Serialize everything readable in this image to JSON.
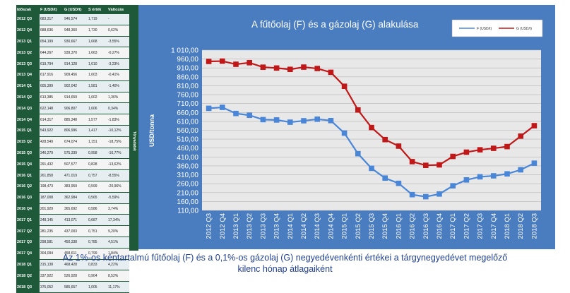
{
  "table": {
    "headers": [
      "Időszak",
      "F (USD/t)",
      "G (USD/t)",
      "S érték",
      "Változás"
    ],
    "side_label": "Tényadatok",
    "rows": [
      [
        "2012 Q3",
        "683,317",
        "946,574",
        "1,719",
        "-"
      ],
      [
        "2012 Q4",
        "688,636",
        "948,360",
        "1,730",
        "0,62%"
      ],
      [
        "2013 Q1",
        "654,199",
        "930,667",
        "1,668",
        "-3,55%"
      ],
      [
        "2013 Q2",
        "644,267",
        "939,370",
        "1,663",
        "-0,27%"
      ],
      [
        "2013 Q3",
        "619,794",
        "914,128",
        "1,610",
        "-3,23%"
      ],
      [
        "2013 Q4",
        "617,916",
        "909,456",
        "1,603",
        "-0,41%"
      ],
      [
        "2014 Q1",
        "605,399",
        "902,042",
        "1,581",
        "-1,40%"
      ],
      [
        "2014 Q2",
        "613,385",
        "914,659",
        "1,602",
        "1,36%"
      ],
      [
        "2014 Q3",
        "622,148",
        "906,807",
        "1,606",
        "0,34%"
      ],
      [
        "2014 Q4",
        "614,317",
        "885,348",
        "1,577",
        "-1,83%"
      ],
      [
        "2015 Q1",
        "543,922",
        "806,996",
        "1,417",
        "-10,12%"
      ],
      [
        "2015 Q2",
        "428,549",
        "674,074",
        "1,151",
        "-18,75%"
      ],
      [
        "2015 Q3",
        "346,279",
        "575,339",
        "0,958",
        "-16,77%"
      ],
      [
        "2015 Q4",
        "291,432",
        "507,577",
        "0,828",
        "-13,62%"
      ],
      [
        "2016 Q1",
        "261,858",
        "471,019",
        "0,757",
        "-8,55%"
      ],
      [
        "2016 Q2",
        "198,473",
        "383,959",
        "0,599",
        "-20,96%"
      ],
      [
        "2016 Q3",
        "187,008",
        "362,984",
        "0,565",
        "-5,59%"
      ],
      [
        "2016 Q4",
        "201,929",
        "365,692",
        "0,586",
        "3,74%"
      ],
      [
        "2017 Q1",
        "248,145",
        "413,071",
        "0,687",
        "17,34%"
      ],
      [
        "2017 Q2",
        "281,235",
        "437,003",
        "0,751",
        "9,20%"
      ],
      [
        "2017 Q3",
        "298,581",
        "450,338",
        "0,785",
        "4,51%"
      ],
      [
        "2017 Q4",
        "304,094",
        "458,611",
        "0,799",
        "1,84%"
      ],
      [
        "2018 Q1",
        "315,138",
        "468,428",
        "0,833",
        "4,22%"
      ],
      [
        "2018 Q2",
        "337,922",
        "526,928",
        "0,904",
        "8,52%"
      ],
      [
        "2018 Q3",
        "375,052",
        "585,657",
        "1,005",
        "11,17%"
      ]
    ]
  },
  "caption": {
    "line1": "Az 1%-os kéntartalmú fűtőolaj (F) és a 0,1%-os gázolaj (G) negyedévenkénti értékei a tárgynegyedévet megelőző",
    "line2": "kilenc hónap átlagaiként"
  },
  "colors": {
    "frame_bg": "#4a7cc0",
    "plot_bg": "#e8e8e8",
    "series_f": "#4a86d8",
    "series_g": "#c01818",
    "caption": "#1f3f8f",
    "table_header": "#1e5a3a"
  },
  "chart_data": {
    "type": "line",
    "title": "A fűtőolaj (F) és a gázolaj (G) alakulása",
    "xlabel": "",
    "ylabel": "USD/tonna",
    "ylim": [
      110,
      1010
    ],
    "ytick_step": 50,
    "ytick_labels": [
      "1 010,00",
      "960,00",
      "910,00",
      "860,00",
      "810,00",
      "760,00",
      "710,00",
      "660,00",
      "610,00",
      "560,00",
      "510,00",
      "460,00",
      "410,00",
      "360,00",
      "310,00",
      "260,00",
      "210,00",
      "160,00",
      "110,00"
    ],
    "grid": true,
    "legend_position": "top-right",
    "categories": [
      "2012 Q3",
      "2012 Q4",
      "2013 Q1",
      "2013 Q2",
      "2013 Q3",
      "2013 Q4",
      "2014 Q1",
      "2014 Q2",
      "2014 Q3",
      "2014 Q4",
      "2015 Q1",
      "2015 Q2",
      "2015 Q3",
      "2015 Q4",
      "2016 Q1",
      "2016 Q2",
      "2016 Q3",
      "2016 Q4",
      "2017 Q1",
      "2017 Q2",
      "2017 Q3",
      "2017 Q4",
      "2018 Q1",
      "2018 Q2",
      "2018 Q3"
    ],
    "series": [
      {
        "name": "F (USD/t)",
        "values": [
          683.317,
          688.636,
          654.199,
          644.267,
          619.794,
          617.916,
          605.399,
          613.385,
          622.148,
          614.317,
          543.922,
          428.549,
          346.279,
          291.432,
          261.858,
          198.473,
          187.008,
          201.929,
          248.145,
          281.235,
          298.581,
          304.094,
          315.138,
          337.922,
          375.052
        ]
      },
      {
        "name": "G (USD/t)",
        "values": [
          946.574,
          948.36,
          930.667,
          939.37,
          914.128,
          909.456,
          902.042,
          914.659,
          906.807,
          885.348,
          806.996,
          674.074,
          575.339,
          507.577,
          471.019,
          383.959,
          362.984,
          365.692,
          413.071,
          437.003,
          450.338,
          458.611,
          468.428,
          526.928,
          585.657
        ]
      }
    ]
  }
}
